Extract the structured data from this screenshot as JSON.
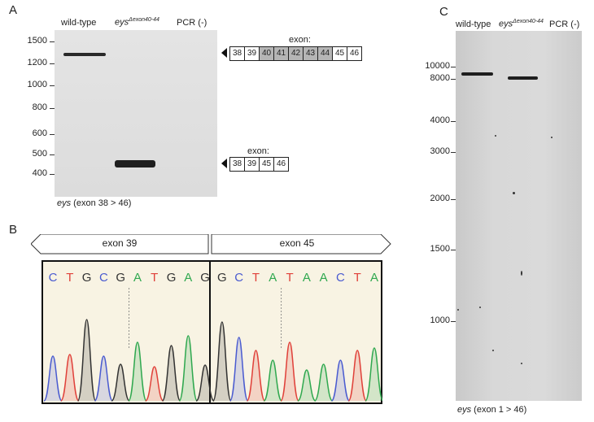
{
  "panel_a": {
    "letter": "A",
    "lanes": {
      "wt": "wild-type",
      "mut_main": "eys",
      "mut_sup": "Δexon40-44",
      "neg": "PCR (-)"
    },
    "markers": [
      "1500",
      "1200",
      "1000",
      "800",
      "600",
      "500",
      "400"
    ],
    "exon_label_top": "exon:",
    "exons_top": [
      {
        "n": "38",
        "deleted": false
      },
      {
        "n": "39",
        "deleted": false
      },
      {
        "n": "40",
        "deleted": true
      },
      {
        "n": "41",
        "deleted": true
      },
      {
        "n": "42",
        "deleted": true
      },
      {
        "n": "43",
        "deleted": true
      },
      {
        "n": "44",
        "deleted": true
      },
      {
        "n": "45",
        "deleted": false
      },
      {
        "n": "46",
        "deleted": false
      }
    ],
    "exon_label_bottom": "exon:",
    "exons_bottom": [
      "38",
      "39",
      "45",
      "46"
    ],
    "caption_gene": "eys",
    "caption_rest": " (exon 38 > 46)"
  },
  "panel_b": {
    "letter": "B",
    "exon_left": "exon 39",
    "exon_right": "exon 45",
    "bases": [
      {
        "b": "C",
        "c": "#4a5bd0"
      },
      {
        "b": "T",
        "c": "#e0413a"
      },
      {
        "b": "G",
        "c": "#333333"
      },
      {
        "b": "C",
        "c": "#4a5bd0"
      },
      {
        "b": "G",
        "c": "#333333"
      },
      {
        "b": "A",
        "c": "#2fa84f"
      },
      {
        "b": "T",
        "c": "#e0413a"
      },
      {
        "b": "G",
        "c": "#333333"
      },
      {
        "b": "A",
        "c": "#2fa84f"
      },
      {
        "b": "G",
        "c": "#333333"
      },
      {
        "b": "G",
        "c": "#333333"
      },
      {
        "b": "C",
        "c": "#4a5bd0"
      },
      {
        "b": "T",
        "c": "#e0413a"
      },
      {
        "b": "A",
        "c": "#2fa84f"
      },
      {
        "b": "T",
        "c": "#e0413a"
      },
      {
        "b": "A",
        "c": "#2fa84f"
      },
      {
        "b": "A",
        "c": "#2fa84f"
      },
      {
        "b": "C",
        "c": "#4a5bd0"
      },
      {
        "b": "T",
        "c": "#e0413a"
      },
      {
        "b": "A",
        "c": "#2fa84f"
      }
    ],
    "peak_heights": [
      0.55,
      0.57,
      1.0,
      0.55,
      0.45,
      0.72,
      0.42,
      0.68,
      0.8,
      0.44,
      0.97,
      0.78,
      0.62,
      0.5,
      0.72,
      0.38,
      0.45,
      0.5,
      0.62,
      0.65
    ]
  },
  "panel_c": {
    "letter": "C",
    "lanes": {
      "wt": "wild-type",
      "mut_main": "eys",
      "mut_sup": "Δexon40-44",
      "neg": "PCR (-)"
    },
    "markers": [
      "10000",
      "8000",
      "4000",
      "3000",
      "2000",
      "1500",
      "1000"
    ],
    "caption_gene": "eys",
    "caption_rest": " (exon 1 > 46)"
  },
  "colors": {
    "chrom_bg": "#f8f3e3",
    "A": "#2fa84f",
    "C": "#4a5bd0",
    "G": "#333333",
    "T": "#e0413a"
  }
}
